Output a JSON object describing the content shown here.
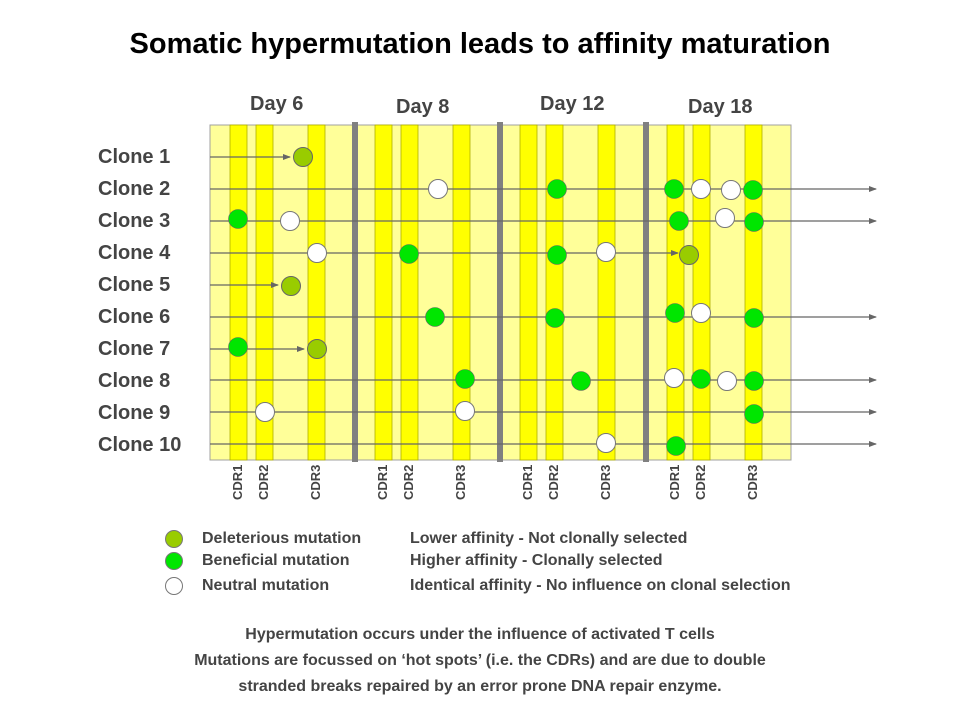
{
  "title": "Somatic hypermutation leads to affinity maturation",
  "days": [
    "Day 6",
    "Day 8",
    "Day 12",
    "Day 18"
  ],
  "clones": [
    "Clone 1",
    "Clone 2",
    "Clone 3",
    "Clone 4",
    "Clone 5",
    "Clone 6",
    "Clone 7",
    "Clone 8",
    "Clone 9",
    "Clone 10"
  ],
  "cdr_labels": [
    "CDR1",
    "CDR2",
    "CDR3"
  ],
  "legend": [
    {
      "type": "deleterious",
      "label": "Deleterious mutation",
      "meaning": "Lower affinity - Not clonally selected"
    },
    {
      "type": "beneficial",
      "label": "Beneficial mutation",
      "meaning": "Higher affinity - Clonally selected"
    },
    {
      "type": "neutral",
      "label": "Neutral mutation",
      "meaning": "Identical affinity - No influence on clonal selection"
    }
  ],
  "footer": [
    "Hypermutation occurs under the influence of activated T cells",
    "Mutations are focussed on ‘hot spots’ (i.e. the CDRs) and are due to double",
    "stranded breaks repaired by an error prone DNA repair enzyme."
  ],
  "colors": {
    "panel": "#FFFF99",
    "cdr_band": "#FFFF00",
    "divider": "#808080",
    "deleterious": "#99CC00",
    "beneficial": "#00E600",
    "neutral": "#FFFFFF"
  }
}
